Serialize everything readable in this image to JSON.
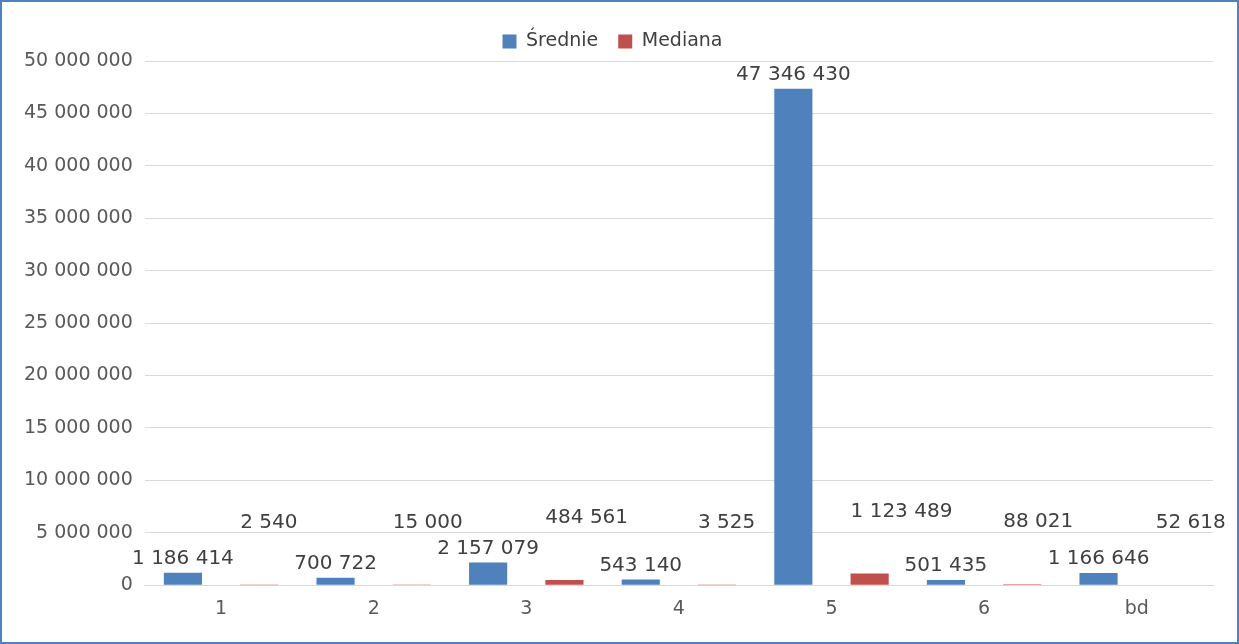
{
  "chart_data": {
    "type": "bar",
    "categories": [
      "1",
      "2",
      "3",
      "4",
      "5",
      "6",
      "bd"
    ],
    "series": [
      {
        "name": "Średnie",
        "color": "#4f81bd",
        "values": [
          1186414,
          700722,
          2157079,
          543140,
          47346430,
          501435,
          1166646
        ],
        "value_labels": [
          "1 186 414",
          "700 722",
          "2 157 079",
          "543 140",
          "47 346 430",
          "501 435",
          "1 166 646"
        ]
      },
      {
        "name": "Mediana",
        "color": "#c0504d",
        "values": [
          2540,
          15000,
          484561,
          3525,
          1123489,
          88021,
          52618
        ],
        "value_labels": [
          "2 540",
          "15 000",
          "484 561",
          "3 525",
          "1 123 489",
          "88 021",
          "52 618"
        ]
      }
    ],
    "ylim": [
      0,
      50000000
    ],
    "yticks": [
      {
        "value": 0,
        "label": "0"
      },
      {
        "value": 5000000,
        "label": "5 000 000"
      },
      {
        "value": 10000000,
        "label": "10 000 000"
      },
      {
        "value": 15000000,
        "label": "15 000 000"
      },
      {
        "value": 20000000,
        "label": "20 000 000"
      },
      {
        "value": 25000000,
        "label": "25 000 000"
      },
      {
        "value": 30000000,
        "label": "30 000 000"
      },
      {
        "value": 35000000,
        "label": "35 000 000"
      },
      {
        "value": 40000000,
        "label": "40 000 000"
      },
      {
        "value": 45000000,
        "label": "45 000 000"
      },
      {
        "value": 50000000,
        "label": "50 000 000"
      }
    ],
    "grid": "y",
    "legend": "top"
  }
}
